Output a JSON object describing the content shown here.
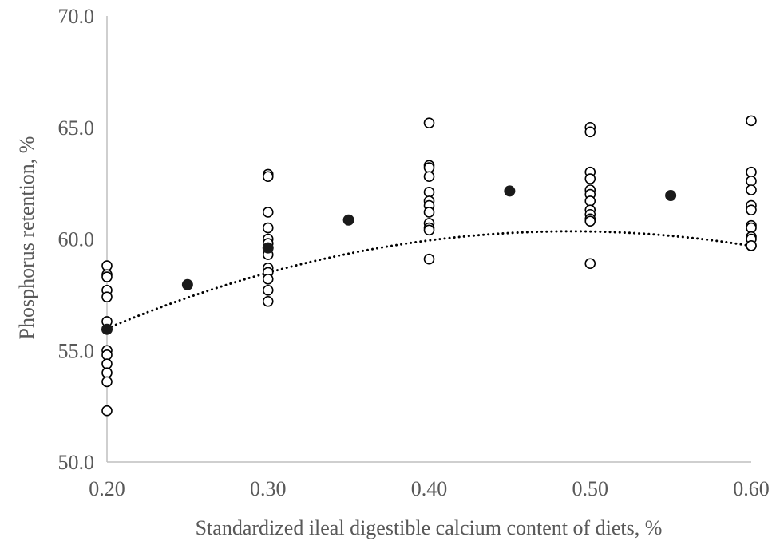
{
  "chart_data": {
    "type": "scatter",
    "title": "",
    "xlabel": "Standardized ileal digestible calcium content of diets, %",
    "ylabel": "Phosphorus retention, %",
    "xlim": [
      0.2,
      0.6
    ],
    "ylim": [
      50.0,
      70.0
    ],
    "x_ticks": [
      "0.20",
      "0.30",
      "0.40",
      "0.50",
      "0.60"
    ],
    "y_ticks": [
      "50.0",
      "55.0",
      "60.0",
      "65.0",
      "70.0"
    ],
    "grid": false,
    "legend": "none",
    "colors": {
      "axis": "#bfbfbf",
      "text": "#595959",
      "marker": "#000000",
      "predicted": "#1a1a1a"
    },
    "series": [
      {
        "style": "open-circle",
        "points": [
          [
            0.2,
            58.8
          ],
          [
            0.2,
            58.4
          ],
          [
            0.2,
            58.3
          ],
          [
            0.2,
            57.7
          ],
          [
            0.2,
            57.4
          ],
          [
            0.2,
            56.3
          ],
          [
            0.2,
            55.0
          ],
          [
            0.2,
            54.8
          ],
          [
            0.2,
            54.4
          ],
          [
            0.2,
            54.0
          ],
          [
            0.2,
            53.6
          ],
          [
            0.2,
            52.3
          ],
          [
            0.3,
            62.9
          ],
          [
            0.3,
            62.8
          ],
          [
            0.3,
            61.2
          ],
          [
            0.3,
            60.5
          ],
          [
            0.3,
            60.0
          ],
          [
            0.3,
            59.8
          ],
          [
            0.3,
            59.3
          ],
          [
            0.3,
            58.7
          ],
          [
            0.3,
            58.5
          ],
          [
            0.3,
            58.2
          ],
          [
            0.3,
            57.7
          ],
          [
            0.3,
            57.2
          ],
          [
            0.4,
            65.2
          ],
          [
            0.4,
            63.3
          ],
          [
            0.4,
            63.2
          ],
          [
            0.4,
            62.8
          ],
          [
            0.4,
            62.1
          ],
          [
            0.4,
            61.7
          ],
          [
            0.4,
            61.5
          ],
          [
            0.4,
            61.2
          ],
          [
            0.4,
            60.7
          ],
          [
            0.4,
            60.5
          ],
          [
            0.4,
            60.4
          ],
          [
            0.4,
            59.1
          ],
          [
            0.5,
            65.0
          ],
          [
            0.5,
            64.8
          ],
          [
            0.5,
            63.0
          ],
          [
            0.5,
            62.7
          ],
          [
            0.5,
            62.2
          ],
          [
            0.5,
            62.0
          ],
          [
            0.5,
            61.7
          ],
          [
            0.5,
            61.3
          ],
          [
            0.5,
            61.1
          ],
          [
            0.5,
            60.9
          ],
          [
            0.5,
            60.8
          ],
          [
            0.5,
            58.9
          ],
          [
            0.6,
            65.3
          ],
          [
            0.6,
            63.0
          ],
          [
            0.6,
            62.6
          ],
          [
            0.6,
            62.2
          ],
          [
            0.6,
            61.5
          ],
          [
            0.6,
            61.3
          ],
          [
            0.6,
            60.6
          ],
          [
            0.6,
            60.5
          ],
          [
            0.6,
            60.1
          ],
          [
            0.6,
            60.0
          ],
          [
            0.6,
            59.7
          ],
          [
            0.6,
            59.7
          ]
        ]
      },
      {
        "style": "filled-circle",
        "points": [
          [
            0.2,
            55.95
          ],
          [
            0.25,
            57.95
          ],
          [
            0.3,
            59.6
          ],
          [
            0.35,
            60.85
          ],
          [
            0.45,
            62.15
          ],
          [
            0.55,
            61.95
          ]
        ]
      },
      {
        "style": "dotted-curve",
        "equation": "quadratic",
        "coefficients": {
          "a": -52.5,
          "b": 51.25,
          "c": 47.8375
        }
      }
    ]
  }
}
